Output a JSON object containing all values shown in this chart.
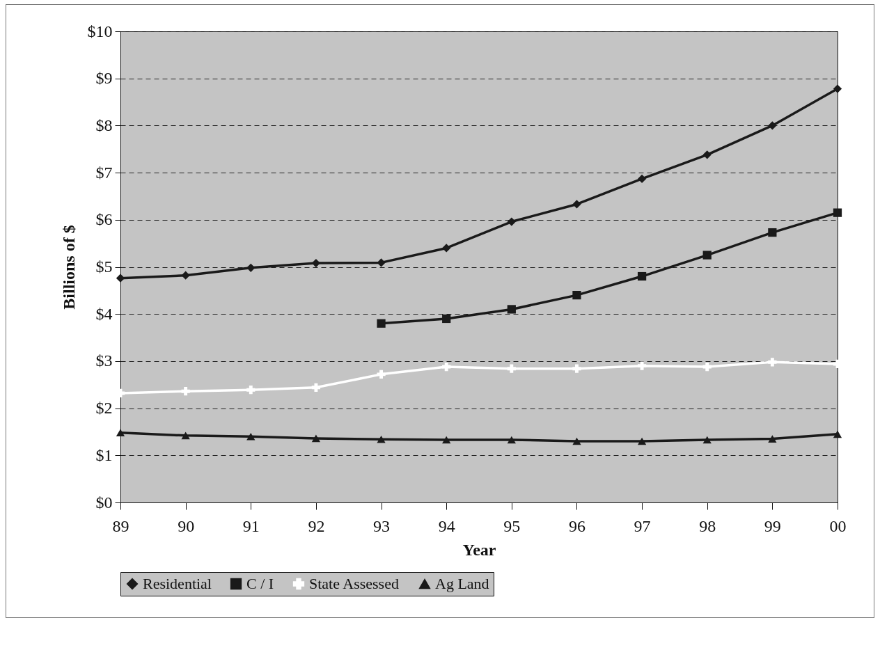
{
  "chart_data": {
    "type": "line",
    "xlabel": "Year",
    "ylabel": "Billions of $",
    "categories": [
      "89",
      "90",
      "91",
      "92",
      "93",
      "94",
      "95",
      "96",
      "97",
      "98",
      "99",
      "00"
    ],
    "series": [
      {
        "name": "Residential",
        "color": "#1a1a1a",
        "marker": "diamond",
        "values": [
          4.76,
          4.82,
          4.98,
          5.08,
          5.09,
          5.4,
          5.96,
          6.33,
          6.87,
          7.38,
          8.0,
          8.78
        ]
      },
      {
        "name": "C / I",
        "color": "#1a1a1a",
        "marker": "square",
        "values": [
          null,
          null,
          null,
          null,
          3.8,
          3.9,
          4.1,
          4.4,
          4.8,
          5.25,
          5.73,
          6.15
        ]
      },
      {
        "name": "State Assessed",
        "color": "#ffffff",
        "marker": "cross",
        "values": [
          2.32,
          2.36,
          2.39,
          2.44,
          2.72,
          2.88,
          2.84,
          2.84,
          2.9,
          2.88,
          2.98,
          2.94
        ]
      },
      {
        "name": "Ag Land",
        "color": "#1a1a1a",
        "marker": "triangle",
        "values": [
          1.48,
          1.42,
          1.4,
          1.36,
          1.34,
          1.33,
          1.33,
          1.3,
          1.3,
          1.33,
          1.35,
          1.45
        ]
      }
    ],
    "ylim": [
      0,
      10
    ],
    "yticks": [
      {
        "value": 0,
        "label": "$0"
      },
      {
        "value": 1,
        "label": "$1"
      },
      {
        "value": 2,
        "label": "$2"
      },
      {
        "value": 3,
        "label": "$3"
      },
      {
        "value": 4,
        "label": "$4"
      },
      {
        "value": 5,
        "label": "$5"
      },
      {
        "value": 6,
        "label": "$6"
      },
      {
        "value": 7,
        "label": "$7"
      },
      {
        "value": 8,
        "label": "$8"
      },
      {
        "value": 9,
        "label": "$9"
      },
      {
        "value": 10,
        "label": "$10"
      }
    ],
    "grid": "y",
    "line_style": "solid",
    "legend": "bottom"
  }
}
